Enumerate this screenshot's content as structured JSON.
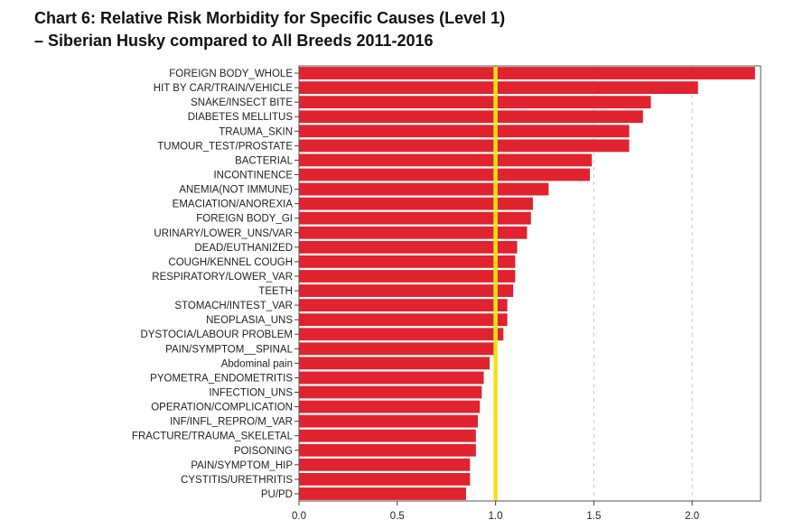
{
  "title_line1": "Chart 6: Relative Risk Morbidity for Specific Causes (Level 1)",
  "title_line2": "–  Siberian Husky compared to All Breeds 2011-2016",
  "chart_data": {
    "type": "bar",
    "orientation": "horizontal",
    "title": "Chart 6: Relative Risk Morbidity for Specific Causes (Level 1) – Siberian Husky compared to All Breeds 2011-2016",
    "xlabel": "",
    "ylabel": "",
    "xlim": [
      0,
      2.33
    ],
    "xticks": [
      "0.0",
      "0.5",
      "1.0",
      "1.5",
      "2.0"
    ],
    "reference_line": 1.0,
    "bar_color": "#e0232e",
    "reference_color": "#f5e11a",
    "grid": "vertical dashed at 1.5 and 2.0",
    "categories": [
      "FOREIGN BODY_WHOLE",
      "HIT BY CAR/TRAIN/VEHICLE",
      "SNAKE/INSECT BITE",
      "DIABETES MELLITUS",
      "TRAUMA_SKIN",
      "TUMOUR_TEST/PROSTATE",
      "BACTERIAL",
      "INCONTINENCE",
      "ANEMIA(NOT IMMUNE)",
      "EMACIATION/ANOREXIA",
      "FOREIGN BODY_GI",
      "URINARY/LOWER_UNS/VAR",
      "DEAD/EUTHANIZED",
      "COUGH/KENNEL COUGH",
      "RESPIRATORY/LOWER_VAR",
      "TEETH",
      "STOMACH/INTEST_VAR",
      "NEOPLASIA_UNS",
      "DYSTOCIA/LABOUR PROBLEM",
      "PAIN/SYMPTOM__SPINAL",
      "Abdominal pain",
      "PYOMETRA_ENDOMETRITIS",
      "INFECTION_UNS",
      "OPERATION/COMPLICATION",
      "INF/INFL_REPRO/M_VAR",
      "FRACTURE/TRAUMA_SKELETAL",
      "POISONING",
      "PAIN/SYMPTOM_HIP",
      "CYSTITIS/URETHRITIS",
      "PU/PD"
    ],
    "values": [
      2.32,
      2.03,
      1.79,
      1.75,
      1.68,
      1.68,
      1.49,
      1.48,
      1.27,
      1.19,
      1.18,
      1.16,
      1.11,
      1.1,
      1.1,
      1.09,
      1.06,
      1.06,
      1.04,
      1.0,
      0.97,
      0.94,
      0.93,
      0.92,
      0.91,
      0.9,
      0.9,
      0.87,
      0.87,
      0.85
    ]
  }
}
